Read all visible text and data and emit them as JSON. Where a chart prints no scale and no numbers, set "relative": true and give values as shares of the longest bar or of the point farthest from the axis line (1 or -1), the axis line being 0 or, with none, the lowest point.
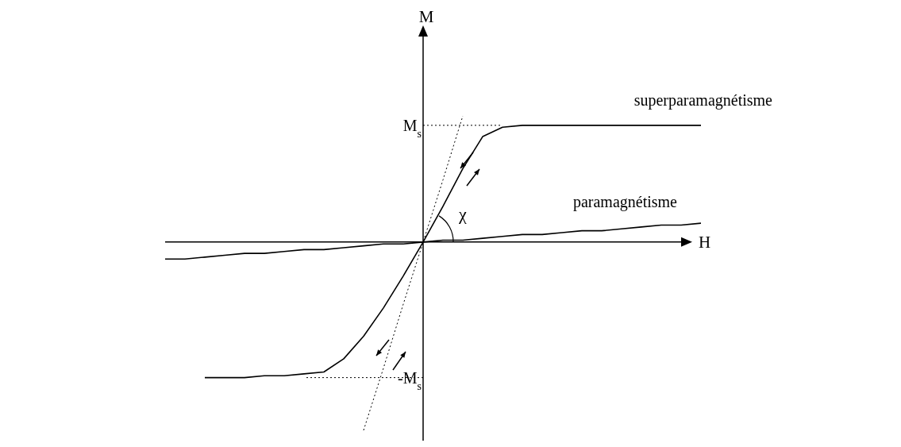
{
  "chart_data": {
    "type": "line",
    "relative": true,
    "xlabel": "H",
    "marker": "none",
    "categories": [
      null,
      null,
      null,
      null,
      null,
      null,
      null,
      null,
      null,
      null,
      null,
      null,
      null,
      null,
      null,
      null,
      null,
      null,
      null,
      null,
      null,
      null,
      null,
      null,
      null,
      null,
      null,
      null
    ],
    "series": [
      {
        "name": "superparamagnétisme",
        "color": "#000000",
        "values": [
          null,
          null,
          -0.72,
          -0.72,
          -0.72,
          -0.71,
          -0.71,
          -0.7,
          -0.69,
          -0.62,
          -0.5,
          -0.35,
          -0.18,
          0,
          0.19,
          0.39,
          0.56,
          0.61,
          0.62,
          0.62,
          0.62,
          0.62,
          0.62,
          0.62,
          0.62,
          0.62,
          0.62,
          0.62
        ]
      },
      {
        "name": "paramagnétisme",
        "color": "#000000",
        "values": [
          -0.09,
          -0.09,
          -0.08,
          -0.07,
          -0.06,
          -0.06,
          -0.05,
          -0.04,
          -0.04,
          -0.03,
          -0.02,
          -0.01,
          -0.01,
          0,
          0.01,
          0.01,
          0.02,
          0.03,
          0.04,
          0.04,
          0.05,
          0.06,
          0.06,
          0.07,
          0.08,
          0.09,
          0.09,
          0.1
        ]
      },
      {
        "color": "#000000",
        "line_style": "dotted",
        "values": [
          null,
          null,
          null,
          null,
          null,
          null,
          null,
          null,
          null,
          null,
          -1.0,
          -0.67,
          -0.33,
          0,
          0.33,
          0.67,
          null,
          null,
          null,
          null,
          null,
          null,
          null,
          null,
          null,
          null,
          null,
          null
        ]
      }
    ],
    "ref_lines": [
      {
        "axis": "y",
        "value": 0.62,
        "label": "M$_{s}$",
        "line_style": "dotted"
      },
      {
        "axis": "y",
        "value": -0.72,
        "label": "-M$_{s}$",
        "line_style": "dotted"
      }
    ],
    "annotations": [
      "M",
      "χ"
    ]
  }
}
